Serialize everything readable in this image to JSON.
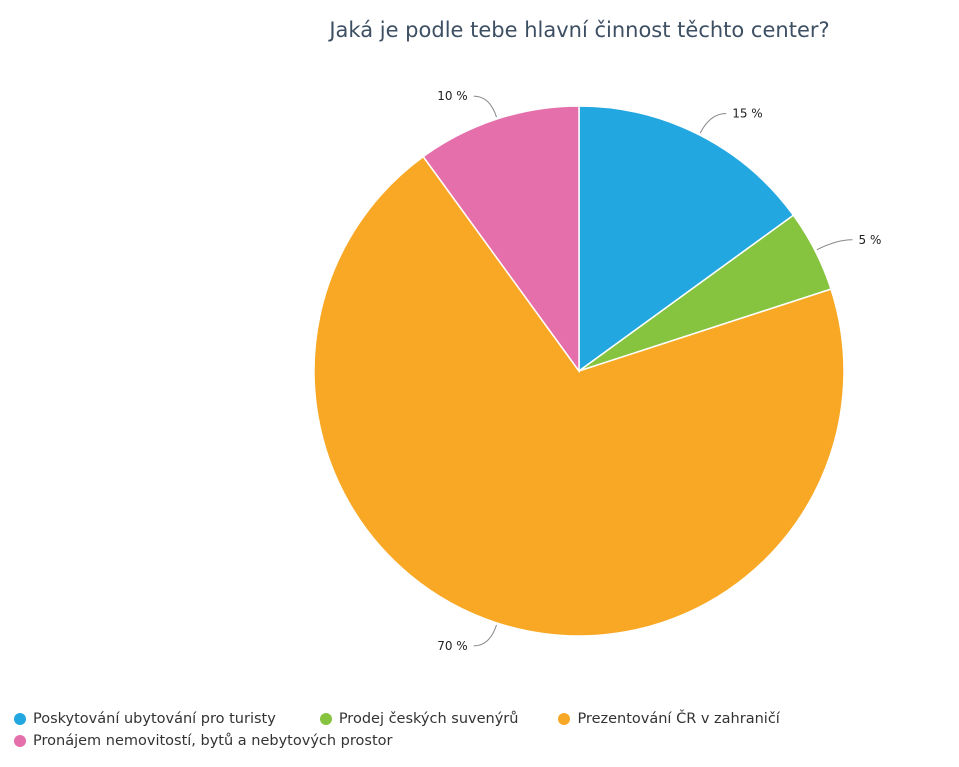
{
  "chart_data": {
    "type": "pie",
    "title": "Jaká je podle tebe hlavní činnost těchto center?",
    "categories": [
      "Poskytování ubytování pro turisty",
      "Prodej českých suvenýrů",
      "Prezentování ČR v zahraničí",
      "Pronájem nemovitostí, bytů a nebytových prostor"
    ],
    "values": [
      15,
      5,
      70,
      10
    ],
    "value_labels": [
      "15 %",
      "5 %",
      "70 %",
      "10 %"
    ],
    "colors": [
      "#22a7e0",
      "#86c440",
      "#f9a825",
      "#e56faa"
    ],
    "legend_position": "bottom"
  }
}
